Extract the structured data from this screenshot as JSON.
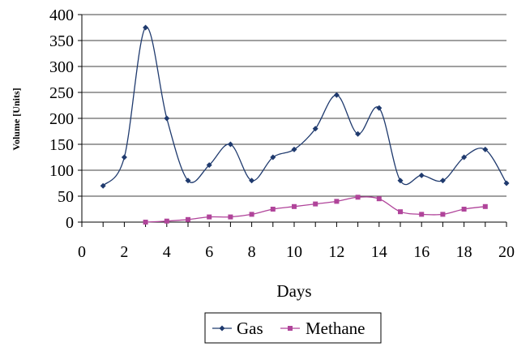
{
  "chart_data": {
    "type": "line",
    "title": "",
    "xlabel": "Days",
    "ylabel": "Volume [Units]",
    "xlim": [
      0,
      20
    ],
    "ylim": [
      0,
      400
    ],
    "xticks": [
      0,
      2,
      4,
      6,
      8,
      10,
      12,
      14,
      16,
      18,
      20
    ],
    "yticks": [
      0,
      50,
      100,
      150,
      200,
      250,
      300,
      350,
      400
    ],
    "grid": "horizontal",
    "legend": "bottom",
    "smooth": true,
    "series": [
      {
        "name": "Gas",
        "color": "#1f3a6e",
        "marker": "diamond",
        "x": [
          1,
          2,
          3,
          4,
          5,
          6,
          7,
          8,
          9,
          10,
          11,
          12,
          13,
          14,
          15,
          16,
          17,
          18,
          19,
          20
        ],
        "y": [
          70,
          125,
          375,
          200,
          80,
          110,
          150,
          80,
          125,
          140,
          180,
          245,
          170,
          220,
          80,
          90,
          80,
          125,
          140,
          75
        ]
      },
      {
        "name": "Methane",
        "color": "#b0449a",
        "marker": "square",
        "x": [
          3,
          4,
          5,
          6,
          7,
          8,
          9,
          10,
          11,
          12,
          13,
          14,
          15,
          16,
          17,
          18,
          19
        ],
        "y": [
          0,
          2,
          5,
          10,
          10,
          15,
          25,
          30,
          35,
          40,
          48,
          45,
          20,
          15,
          15,
          25,
          30
        ]
      }
    ]
  }
}
